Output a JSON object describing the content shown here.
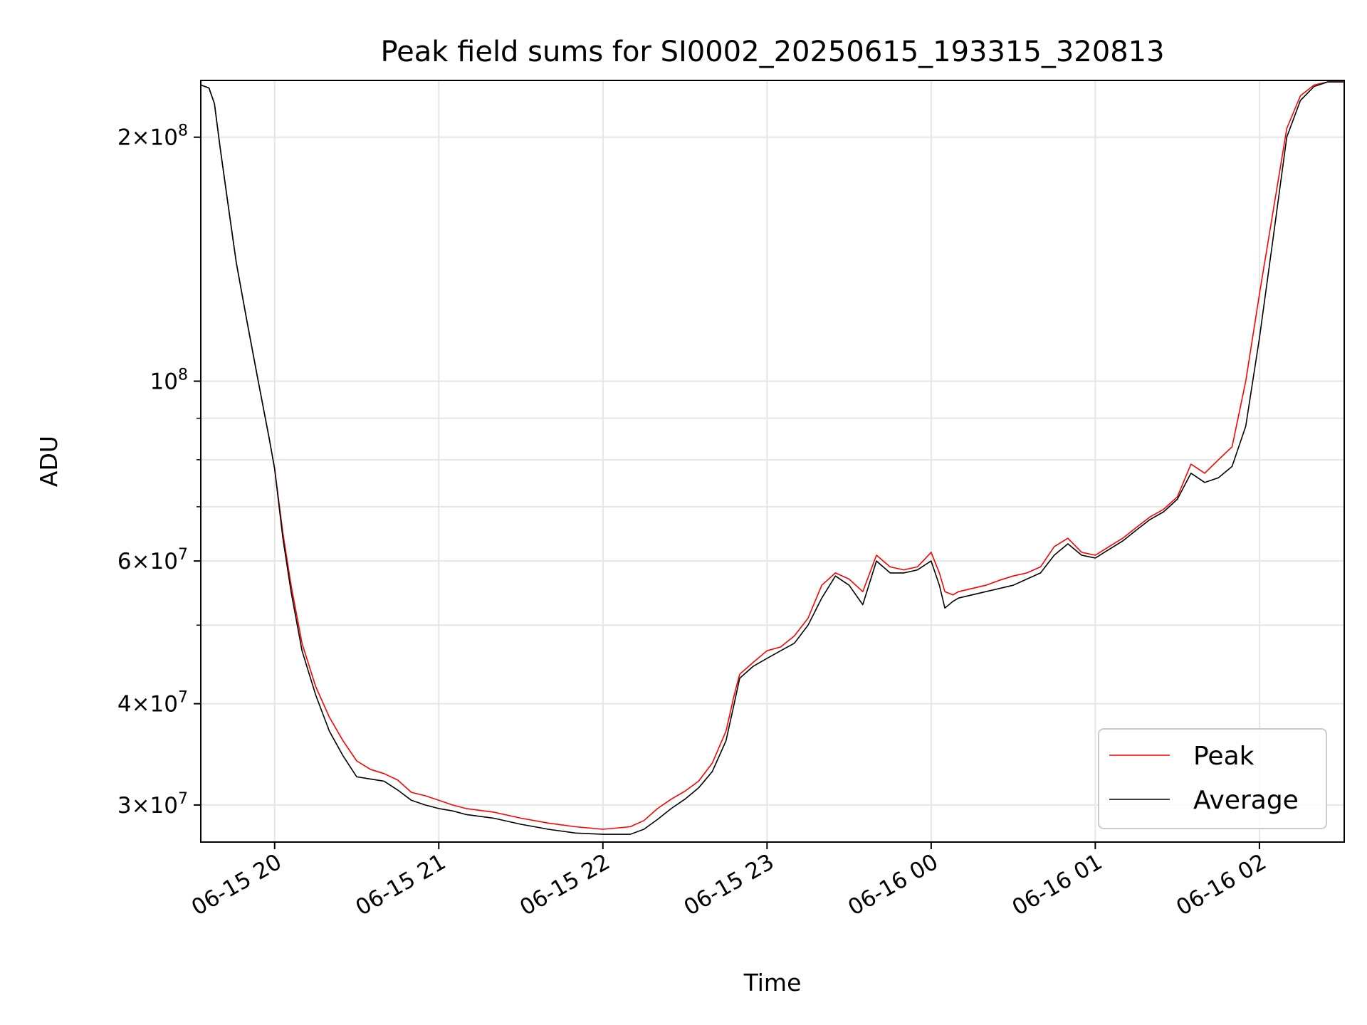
{
  "chart_data": {
    "type": "line",
    "title": "Peak field sums for SI0002_20250615_193315_320813",
    "xlabel": "Time",
    "ylabel": "ADU",
    "y_scale": "log",
    "grid": true,
    "legend_position": "lower right",
    "xlim": [
      "2025-06-15 19:33",
      "2025-06-16 02:31"
    ],
    "ylim": [
      27000000,
      235000000
    ],
    "x_ticks": [
      {
        "value": "2025-06-15 20:00",
        "label": "06-15 20"
      },
      {
        "value": "2025-06-15 21:00",
        "label": "06-15 21"
      },
      {
        "value": "2025-06-15 22:00",
        "label": "06-15 22"
      },
      {
        "value": "2025-06-15 23:00",
        "label": "06-15 23"
      },
      {
        "value": "2025-06-16 00:00",
        "label": "06-16 00"
      },
      {
        "value": "2025-06-16 01:00",
        "label": "06-16 01"
      },
      {
        "value": "2025-06-16 02:00",
        "label": "06-16 02"
      }
    ],
    "y_ticks_major": [
      {
        "value": 30000000,
        "mantissa": "3",
        "exponent": "7"
      },
      {
        "value": 40000000,
        "mantissa": "4",
        "exponent": "7"
      },
      {
        "value": 60000000,
        "mantissa": "6",
        "exponent": "7"
      },
      {
        "value": 100000000,
        "mantissa": "",
        "exponent": "8"
      },
      {
        "value": 200000000,
        "mantissa": "2",
        "exponent": "8"
      }
    ],
    "y_ticks_minor": [
      50000000,
      70000000,
      80000000,
      90000000
    ],
    "series": [
      {
        "name": "Peak",
        "color": "#ff0000",
        "x": [
          "2025-06-15 19:33",
          "2025-06-15 19:36",
          "2025-06-15 19:38",
          "2025-06-15 19:40",
          "2025-06-15 19:43",
          "2025-06-15 19:46",
          "2025-06-15 19:50",
          "2025-06-15 19:54",
          "2025-06-15 19:58",
          "2025-06-15 20:00",
          "2025-06-15 20:03",
          "2025-06-15 20:06",
          "2025-06-15 20:10",
          "2025-06-15 20:15",
          "2025-06-15 20:20",
          "2025-06-15 20:25",
          "2025-06-15 20:30",
          "2025-06-15 20:35",
          "2025-06-15 20:40",
          "2025-06-15 20:45",
          "2025-06-15 20:50",
          "2025-06-15 20:55",
          "2025-06-15 21:00",
          "2025-06-15 21:05",
          "2025-06-15 21:10",
          "2025-06-15 21:20",
          "2025-06-15 21:30",
          "2025-06-15 21:40",
          "2025-06-15 21:50",
          "2025-06-15 22:00",
          "2025-06-15 22:10",
          "2025-06-15 22:15",
          "2025-06-15 22:20",
          "2025-06-15 22:25",
          "2025-06-15 22:30",
          "2025-06-15 22:35",
          "2025-06-15 22:40",
          "2025-06-15 22:45",
          "2025-06-15 22:48",
          "2025-06-15 22:50",
          "2025-06-15 22:55",
          "2025-06-15 23:00",
          "2025-06-15 23:05",
          "2025-06-15 23:10",
          "2025-06-15 23:15",
          "2025-06-15 23:20",
          "2025-06-15 23:25",
          "2025-06-15 23:30",
          "2025-06-15 23:35",
          "2025-06-15 23:40",
          "2025-06-15 23:45",
          "2025-06-15 23:50",
          "2025-06-15 23:55",
          "2025-06-16 00:00",
          "2025-06-16 00:03",
          "2025-06-16 00:05",
          "2025-06-16 00:08",
          "2025-06-16 00:10",
          "2025-06-16 00:15",
          "2025-06-16 00:20",
          "2025-06-16 00:25",
          "2025-06-16 00:30",
          "2025-06-16 00:35",
          "2025-06-16 00:40",
          "2025-06-16 00:45",
          "2025-06-16 00:50",
          "2025-06-16 00:55",
          "2025-06-16 01:00",
          "2025-06-16 01:05",
          "2025-06-16 01:10",
          "2025-06-16 01:15",
          "2025-06-16 01:20",
          "2025-06-16 01:25",
          "2025-06-16 01:30",
          "2025-06-16 01:35",
          "2025-06-16 01:40",
          "2025-06-16 01:45",
          "2025-06-16 01:50",
          "2025-06-16 01:55",
          "2025-06-16 02:00",
          "2025-06-16 02:05",
          "2025-06-16 02:10",
          "2025-06-16 02:15",
          "2025-06-16 02:20",
          "2025-06-16 02:25",
          "2025-06-16 02:31"
        ],
        "values": [
          232000000,
          230000000,
          220000000,
          195000000,
          165000000,
          140000000,
          118000000,
          100000000,
          85000000,
          78000000,
          65000000,
          56000000,
          47500000,
          42000000,
          38500000,
          36000000,
          34000000,
          33200000,
          32800000,
          32200000,
          31100000,
          30800000,
          30400000,
          30000000,
          29700000,
          29400000,
          28900000,
          28500000,
          28200000,
          28000000,
          28200000,
          28700000,
          29700000,
          30500000,
          31200000,
          32100000,
          33800000,
          37000000,
          41000000,
          43500000,
          45000000,
          46500000,
          47000000,
          48500000,
          51000000,
          56000000,
          58000000,
          57000000,
          55000000,
          61000000,
          59000000,
          58500000,
          59000000,
          61500000,
          58000000,
          55000000,
          54500000,
          55000000,
          55500000,
          56000000,
          56800000,
          57500000,
          58000000,
          59000000,
          62500000,
          64000000,
          61500000,
          61000000,
          62500000,
          64000000,
          66000000,
          68000000,
          69500000,
          72000000,
          79000000,
          77000000,
          80000000,
          83000000,
          100000000,
          128000000,
          162000000,
          205000000,
          225000000,
          232000000,
          234000000,
          234000000
        ]
      },
      {
        "name": "Average",
        "color": "#000000",
        "x": [
          "2025-06-15 19:33",
          "2025-06-15 19:36",
          "2025-06-15 19:38",
          "2025-06-15 19:40",
          "2025-06-15 19:43",
          "2025-06-15 19:46",
          "2025-06-15 19:50",
          "2025-06-15 19:54",
          "2025-06-15 19:58",
          "2025-06-15 20:00",
          "2025-06-15 20:03",
          "2025-06-15 20:06",
          "2025-06-15 20:10",
          "2025-06-15 20:15",
          "2025-06-15 20:20",
          "2025-06-15 20:25",
          "2025-06-15 20:30",
          "2025-06-15 20:35",
          "2025-06-15 20:40",
          "2025-06-15 20:45",
          "2025-06-15 20:50",
          "2025-06-15 20:55",
          "2025-06-15 21:00",
          "2025-06-15 21:05",
          "2025-06-15 21:10",
          "2025-06-15 21:20",
          "2025-06-15 21:30",
          "2025-06-15 21:40",
          "2025-06-15 21:50",
          "2025-06-15 22:00",
          "2025-06-15 22:10",
          "2025-06-15 22:15",
          "2025-06-15 22:20",
          "2025-06-15 22:25",
          "2025-06-15 22:30",
          "2025-06-15 22:35",
          "2025-06-15 22:40",
          "2025-06-15 22:45",
          "2025-06-15 22:48",
          "2025-06-15 22:50",
          "2025-06-15 22:55",
          "2025-06-15 23:00",
          "2025-06-15 23:05",
          "2025-06-15 23:10",
          "2025-06-15 23:15",
          "2025-06-15 23:20",
          "2025-06-15 23:25",
          "2025-06-15 23:30",
          "2025-06-15 23:35",
          "2025-06-15 23:40",
          "2025-06-15 23:45",
          "2025-06-15 23:50",
          "2025-06-15 23:55",
          "2025-06-16 00:00",
          "2025-06-16 00:03",
          "2025-06-16 00:05",
          "2025-06-16 00:08",
          "2025-06-16 00:10",
          "2025-06-16 00:15",
          "2025-06-16 00:20",
          "2025-06-16 00:25",
          "2025-06-16 00:30",
          "2025-06-16 00:35",
          "2025-06-16 00:40",
          "2025-06-16 00:45",
          "2025-06-16 00:50",
          "2025-06-16 00:55",
          "2025-06-16 01:00",
          "2025-06-16 01:05",
          "2025-06-16 01:10",
          "2025-06-16 01:15",
          "2025-06-16 01:20",
          "2025-06-16 01:25",
          "2025-06-16 01:30",
          "2025-06-16 01:35",
          "2025-06-16 01:40",
          "2025-06-16 01:45",
          "2025-06-16 01:50",
          "2025-06-16 01:55",
          "2025-06-16 02:00",
          "2025-06-16 02:05",
          "2025-06-16 02:10",
          "2025-06-16 02:15",
          "2025-06-16 02:20",
          "2025-06-16 02:25",
          "2025-06-16 02:31"
        ],
        "values": [
          232000000,
          230000000,
          220000000,
          195000000,
          165000000,
          140000000,
          118000000,
          100000000,
          85000000,
          78000000,
          64000000,
          55000000,
          46500000,
          41000000,
          37000000,
          34500000,
          32500000,
          32300000,
          32100000,
          31300000,
          30400000,
          30000000,
          29700000,
          29500000,
          29200000,
          28900000,
          28400000,
          28000000,
          27700000,
          27600000,
          27600000,
          28000000,
          28800000,
          29700000,
          30500000,
          31500000,
          33000000,
          36000000,
          40000000,
          43000000,
          44500000,
          45500000,
          46500000,
          47500000,
          50000000,
          54000000,
          57500000,
          56000000,
          53000000,
          60000000,
          58000000,
          58000000,
          58500000,
          60000000,
          56000000,
          52500000,
          53500000,
          54000000,
          54500000,
          55000000,
          55500000,
          56000000,
          57000000,
          58000000,
          61000000,
          63000000,
          61000000,
          60500000,
          62000000,
          63500000,
          65500000,
          67500000,
          69000000,
          71500000,
          77000000,
          75000000,
          76000000,
          78500000,
          88000000,
          113000000,
          150000000,
          200000000,
          222000000,
          231000000,
          234000000,
          234000000
        ]
      }
    ]
  }
}
